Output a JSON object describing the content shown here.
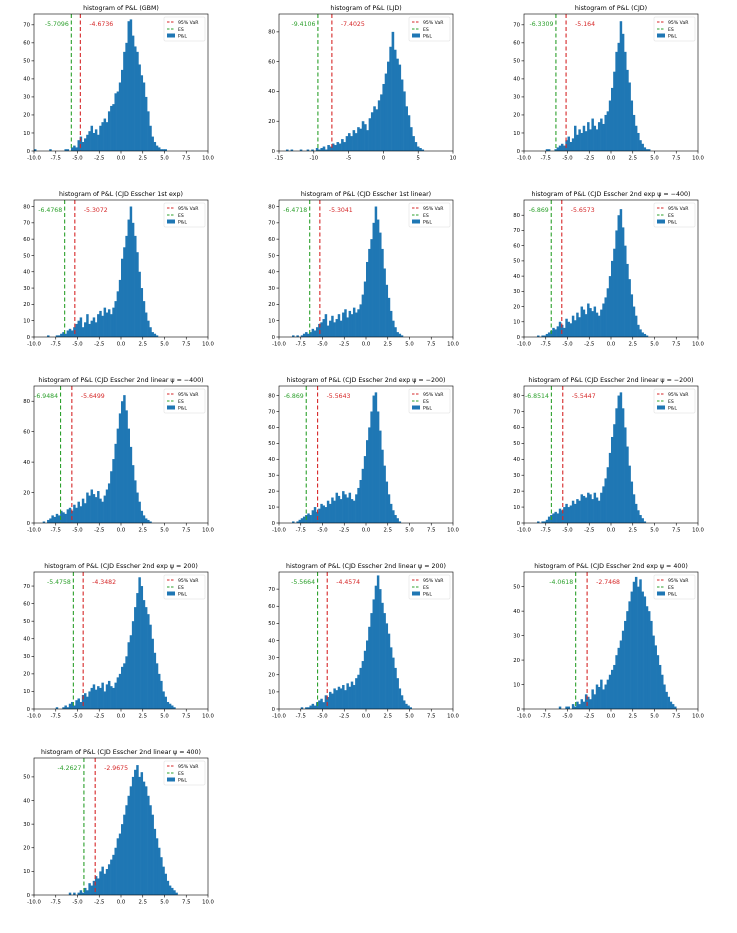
{
  "legend_labels": {
    "var": "95% VaR",
    "es": "ES",
    "pl": "P&L"
  },
  "colors": {
    "bars": "#1f77b4",
    "var": "#d62728",
    "es": "#2ca02c",
    "axis": "#000000"
  },
  "chart_data": [
    {
      "type": "bar",
      "title": "histogram of P&L (GBM)",
      "xlim": [
        -10,
        10
      ],
      "xticks": [
        -10.0,
        -7.5,
        -5.0,
        -2.5,
        0.0,
        2.5,
        5.0,
        7.5,
        10.0
      ],
      "ylim": [
        0,
        76
      ],
      "yticks": [
        0,
        10,
        20,
        30,
        40,
        50,
        60,
        70
      ],
      "var": -4.6736,
      "es": -5.7096,
      "var_label": "-4.6736",
      "es_label": "-5.7096",
      "legend": "top-right",
      "grid": false,
      "bin_width": 0.25,
      "bin_start": -10.0,
      "counts": [
        1,
        0,
        0,
        0,
        0,
        0,
        0,
        1,
        0,
        0,
        0,
        0,
        0,
        0,
        1,
        1,
        0,
        2,
        3,
        2,
        6,
        8,
        5,
        7,
        9,
        11,
        14,
        10,
        12,
        9,
        14,
        16,
        18,
        16,
        22,
        25,
        26,
        32,
        33,
        38,
        45,
        55,
        60,
        72,
        73,
        64,
        58,
        55,
        48,
        42,
        38,
        30,
        22,
        14,
        8,
        5,
        3,
        2,
        1,
        1,
        1
      ]
    },
    {
      "type": "bar",
      "title": "histogram of P&L (LJD)",
      "xlim": [
        -15,
        10
      ],
      "xticks": [
        -15,
        -10,
        -5,
        0,
        5,
        10
      ],
      "ylim": [
        0,
        92
      ],
      "yticks": [
        0,
        20,
        40,
        60,
        80
      ],
      "var": -7.4025,
      "es": -9.4106,
      "var_label": "-7.4025",
      "es_label": "-9.4106",
      "legend": "top-right",
      "grid": false,
      "bin_width": 0.33,
      "bin_start": -14.0,
      "counts": [
        1,
        0,
        1,
        0,
        0,
        0,
        1,
        0,
        0,
        1,
        0,
        1,
        0,
        2,
        1,
        2,
        3,
        1,
        4,
        3,
        5,
        4,
        6,
        5,
        8,
        6,
        10,
        12,
        10,
        14,
        12,
        16,
        15,
        20,
        18,
        14,
        22,
        26,
        30,
        28,
        34,
        38,
        45,
        52,
        60,
        70,
        80,
        68,
        62,
        58,
        48,
        40,
        30,
        24,
        16,
        10,
        6,
        3,
        2,
        1
      ]
    },
    {
      "type": "bar",
      "title": "histogram of P&L (CJD)",
      "xlim": [
        -10,
        10
      ],
      "xticks": [
        -10.0,
        -7.5,
        -5.0,
        -2.5,
        0.0,
        2.5,
        5.0,
        7.5,
        10.0
      ],
      "ylim": [
        0,
        76
      ],
      "yticks": [
        0,
        10,
        20,
        30,
        40,
        50,
        60,
        70
      ],
      "var": -5.164,
      "es": -6.3309,
      "var_label": "-5.164",
      "es_label": "-6.3309",
      "legend": "top-right",
      "grid": false,
      "bin_width": 0.25,
      "bin_start": -9.0,
      "counts": [
        0,
        0,
        0,
        0,
        0,
        0,
        1,
        1,
        0,
        0,
        1,
        2,
        3,
        4,
        3,
        6,
        8,
        5,
        7,
        14,
        9,
        12,
        10,
        14,
        11,
        16,
        12,
        18,
        14,
        12,
        16,
        18,
        15,
        20,
        22,
        28,
        35,
        44,
        55,
        60,
        72,
        65,
        55,
        45,
        38,
        28,
        20,
        14,
        10,
        6,
        4,
        2,
        1,
        1
      ]
    },
    {
      "type": "bar",
      "title": "histogram of P&L (CJD Esscher 1st exp)",
      "xlim": [
        -10,
        10
      ],
      "xticks": [
        -10.0,
        -7.5,
        -5.0,
        -2.5,
        0.0,
        2.5,
        5.0,
        7.5,
        10.0
      ],
      "ylim": [
        0,
        84
      ],
      "yticks": [
        0,
        10,
        20,
        30,
        40,
        50,
        60,
        70,
        80
      ],
      "var": -5.3072,
      "es": -6.4768,
      "var_label": "-5.3072",
      "es_label": "-6.4768",
      "legend": "top-right",
      "grid": false,
      "bin_width": 0.25,
      "bin_start": -8.5,
      "counts": [
        1,
        0,
        0,
        0,
        1,
        1,
        2,
        3,
        2,
        4,
        5,
        4,
        6,
        8,
        10,
        12,
        6,
        9,
        14,
        8,
        10,
        12,
        9,
        14,
        16,
        13,
        18,
        15,
        17,
        14,
        18,
        22,
        28,
        35,
        48,
        55,
        62,
        72,
        80,
        70,
        62,
        52,
        40,
        30,
        22,
        15,
        10,
        6,
        3,
        2,
        1
      ]
    },
    {
      "type": "bar",
      "title": "histogram of P&L (CJD Esscher 1st linear)",
      "xlim": [
        -10,
        10
      ],
      "xticks": [
        -10.0,
        -7.5,
        -5.0,
        -2.5,
        0.0,
        2.5,
        5.0,
        7.5,
        10.0
      ],
      "ylim": [
        0,
        84
      ],
      "yticks": [
        0,
        10,
        20,
        30,
        40,
        50,
        60,
        70,
        80
      ],
      "var": -5.3041,
      "es": -6.4718,
      "var_label": "-5.3041",
      "es_label": "-6.4718",
      "legend": "top-right",
      "grid": false,
      "bin_width": 0.25,
      "bin_start": -8.5,
      "counts": [
        1,
        0,
        1,
        0,
        1,
        2,
        3,
        2,
        3,
        5,
        4,
        6,
        8,
        9,
        11,
        14,
        7,
        10,
        13,
        9,
        11,
        14,
        10,
        15,
        17,
        12,
        16,
        14,
        18,
        15,
        17,
        20,
        26,
        34,
        46,
        54,
        60,
        70,
        80,
        72,
        64,
        54,
        42,
        32,
        24,
        16,
        10,
        6,
        3,
        2,
        1
      ]
    },
    {
      "type": "bar",
      "title": "histogram of P&L (CJD Esscher 2nd exp ψ = −400)",
      "xlim": [
        -10,
        10
      ],
      "xticks": [
        -10.0,
        -7.5,
        -5.0,
        -2.5,
        0.0,
        2.5,
        5.0,
        7.5,
        10.0
      ],
      "ylim": [
        0,
        90
      ],
      "yticks": [
        0,
        10,
        20,
        30,
        40,
        50,
        60,
        70,
        80
      ],
      "var": -5.6573,
      "es": -6.869,
      "var_label": "-5.6573",
      "es_label": "-6.869",
      "legend": "top-right",
      "grid": false,
      "bin_width": 0.25,
      "bin_start": -8.5,
      "counts": [
        1,
        0,
        1,
        1,
        2,
        3,
        4,
        6,
        5,
        7,
        10,
        8,
        6,
        12,
        10,
        9,
        14,
        11,
        16,
        13,
        20,
        18,
        15,
        22,
        19,
        17,
        20,
        16,
        14,
        18,
        22,
        26,
        32,
        40,
        50,
        58,
        70,
        80,
        84,
        72,
        60,
        48,
        38,
        28,
        20,
        14,
        8,
        5,
        3,
        2,
        1
      ]
    },
    {
      "type": "bar",
      "title": "histogram of P&L (CJD Esscher 2nd linear ψ = −400)",
      "xlim": [
        -10,
        10
      ],
      "xticks": [
        -10.0,
        -7.5,
        -5.0,
        -2.5,
        0.0,
        2.5,
        5.0,
        7.5,
        10.0
      ],
      "ylim": [
        0,
        90
      ],
      "yticks": [
        0,
        20,
        40,
        60,
        80
      ],
      "var": -5.6499,
      "es": -6.9484,
      "var_label": "-5.6499",
      "es_label": "-6.9484",
      "legend": "top-right",
      "grid": false,
      "bin_width": 0.25,
      "bin_start": -9.0,
      "counts": [
        1,
        0,
        2,
        3,
        5,
        4,
        6,
        5,
        8,
        7,
        6,
        9,
        10,
        8,
        12,
        10,
        14,
        11,
        16,
        13,
        20,
        18,
        22,
        19,
        17,
        21,
        16,
        14,
        18,
        22,
        26,
        34,
        42,
        52,
        62,
        72,
        80,
        84,
        74,
        62,
        50,
        38,
        28,
        20,
        14,
        8,
        5,
        3,
        2,
        1
      ]
    },
    {
      "type": "bar",
      "title": "histogram of P&L (CJD Esscher 2nd exp ψ = −200)",
      "xlim": [
        -10,
        10
      ],
      "xticks": [
        -10.0,
        -7.5,
        -5.0,
        -2.5,
        0.0,
        2.5,
        5.0,
        7.5,
        10.0
      ],
      "ylim": [
        0,
        86
      ],
      "yticks": [
        0,
        10,
        20,
        30,
        40,
        50,
        60,
        70,
        80
      ],
      "var": -5.5643,
      "es": -6.869,
      "var_label": "-5.5643",
      "es_label": "-6.869",
      "legend": "top-right",
      "grid": false,
      "bin_width": 0.25,
      "bin_start": -8.5,
      "counts": [
        1,
        0,
        1,
        2,
        3,
        4,
        5,
        6,
        5,
        8,
        10,
        7,
        9,
        12,
        11,
        10,
        14,
        12,
        16,
        14,
        19,
        17,
        15,
        20,
        18,
        16,
        19,
        15,
        14,
        18,
        22,
        27,
        34,
        42,
        52,
        60,
        70,
        80,
        82,
        70,
        58,
        46,
        36,
        26,
        18,
        12,
        8,
        5,
        3,
        1
      ]
    },
    {
      "type": "bar",
      "title": "histogram of P&L (CJD Esscher 2nd linear ψ = −200)",
      "xlim": [
        -10,
        10
      ],
      "xticks": [
        -10.0,
        -7.5,
        -5.0,
        -2.5,
        0.0,
        2.5,
        5.0,
        7.5,
        10.0
      ],
      "ylim": [
        0,
        86
      ],
      "yticks": [
        0,
        10,
        20,
        30,
        40,
        50,
        60,
        70,
        80
      ],
      "var": -5.5447,
      "es": -6.8514,
      "var_label": "-5.5447",
      "es_label": "-6.8514",
      "legend": "top-right",
      "grid": false,
      "bin_width": 0.25,
      "bin_start": -8.5,
      "counts": [
        1,
        0,
        1,
        1,
        2,
        4,
        5,
        6,
        7,
        6,
        9,
        8,
        10,
        12,
        10,
        11,
        14,
        12,
        15,
        14,
        18,
        17,
        16,
        19,
        18,
        15,
        19,
        16,
        14,
        19,
        23,
        28,
        35,
        44,
        54,
        62,
        72,
        80,
        82,
        72,
        60,
        48,
        36,
        26,
        18,
        12,
        8,
        5,
        3,
        1
      ]
    },
    {
      "type": "bar",
      "title": "histogram of P&L (CJD Esscher 2nd exp ψ = 200)",
      "xlim": [
        -10,
        10
      ],
      "xticks": [
        -10.0,
        -7.5,
        -5.0,
        -2.5,
        0.0,
        2.5,
        5.0,
        7.5,
        10.0
      ],
      "ylim": [
        0,
        78
      ],
      "yticks": [
        0,
        10,
        20,
        30,
        40,
        50,
        60,
        70
      ],
      "var": -4.3482,
      "es": -5.4758,
      "var_label": "-4.3482",
      "es_label": "-5.4758",
      "legend": "top-right",
      "grid": false,
      "bin_width": 0.25,
      "bin_start": -7.5,
      "counts": [
        1,
        0,
        0,
        1,
        2,
        1,
        3,
        4,
        2,
        5,
        6,
        4,
        8,
        9,
        7,
        10,
        12,
        14,
        11,
        13,
        12,
        15,
        10,
        14,
        16,
        13,
        12,
        15,
        18,
        20,
        24,
        26,
        30,
        38,
        42,
        50,
        58,
        66,
        75,
        70,
        62,
        58,
        54,
        48,
        40,
        32,
        26,
        20,
        16,
        10,
        7,
        4,
        3,
        2,
        1
      ]
    },
    {
      "type": "bar",
      "title": "histogram of P&L (CJD Esscher 2nd linear ψ = 200)",
      "xlim": [
        -10,
        10
      ],
      "xticks": [
        -10.0,
        -7.5,
        -5.0,
        -2.5,
        0.0,
        2.5,
        5.0,
        7.5,
        10.0
      ],
      "ylim": [
        0,
        80
      ],
      "yticks": [
        0,
        10,
        20,
        30,
        40,
        50,
        60,
        70
      ],
      "var": -4.4574,
      "es": -5.5664,
      "var_label": "-4.4574",
      "es_label": "-5.5664",
      "legend": "top-right",
      "grid": false,
      "bin_width": 0.25,
      "bin_start": -7.5,
      "counts": [
        1,
        0,
        1,
        1,
        2,
        3,
        2,
        4,
        5,
        6,
        4,
        8,
        7,
        10,
        9,
        12,
        11,
        13,
        12,
        14,
        11,
        15,
        13,
        16,
        14,
        18,
        20,
        24,
        28,
        34,
        40,
        48,
        56,
        64,
        72,
        78,
        70,
        62,
        56,
        50,
        44,
        36,
        30,
        24,
        18,
        12,
        8,
        5,
        3,
        2,
        1
      ]
    },
    {
      "type": "bar",
      "title": "histogram of P&L (CJD Esscher 2nd exp ψ = 400)",
      "xlim": [
        -10,
        10
      ],
      "xticks": [
        -10.0,
        -7.5,
        -5.0,
        -2.5,
        0.0,
        2.5,
        5.0,
        7.5,
        10.0
      ],
      "ylim": [
        0,
        56
      ],
      "yticks": [
        0,
        10,
        20,
        30,
        40,
        50
      ],
      "var": -2.7468,
      "es": -4.0618,
      "var_label": "-2.7468",
      "es_label": "-4.0618",
      "legend": "top-right",
      "grid": false,
      "bin_width": 0.25,
      "bin_start": -6.0,
      "counts": [
        1,
        0,
        0,
        1,
        1,
        0,
        2,
        1,
        3,
        2,
        4,
        3,
        6,
        5,
        4,
        8,
        6,
        10,
        9,
        12,
        8,
        10,
        12,
        14,
        16,
        18,
        22,
        25,
        28,
        32,
        36,
        40,
        44,
        48,
        52,
        54,
        50,
        53,
        48,
        46,
        42,
        40,
        36,
        30,
        26,
        22,
        18,
        14,
        10,
        7,
        5,
        3,
        2,
        1
      ]
    },
    {
      "type": "bar",
      "title": "histogram of P&L (CJD Esscher 2nd linear ψ = 400)",
      "xlim": [
        -10,
        10
      ],
      "xticks": [
        -10.0,
        -7.5,
        -5.0,
        -2.5,
        0.0,
        2.5,
        5.0,
        7.5,
        10.0
      ],
      "ylim": [
        0,
        58
      ],
      "yticks": [
        0,
        10,
        20,
        30,
        40,
        50
      ],
      "var": -2.9675,
      "es": -4.2627,
      "var_label": "-2.9675",
      "es_label": "-4.2627",
      "legend": "top-right",
      "grid": false,
      "bin_width": 0.25,
      "bin_start": -6.0,
      "counts": [
        1,
        0,
        1,
        0,
        1,
        2,
        1,
        3,
        2,
        5,
        4,
        6,
        8,
        7,
        10,
        12,
        9,
        11,
        13,
        15,
        17,
        20,
        24,
        26,
        30,
        34,
        38,
        42,
        46,
        50,
        53,
        55,
        50,
        52,
        48,
        46,
        42,
        38,
        34,
        28,
        24,
        20,
        16,
        12,
        9,
        6,
        4,
        3,
        2,
        1
      ]
    }
  ]
}
